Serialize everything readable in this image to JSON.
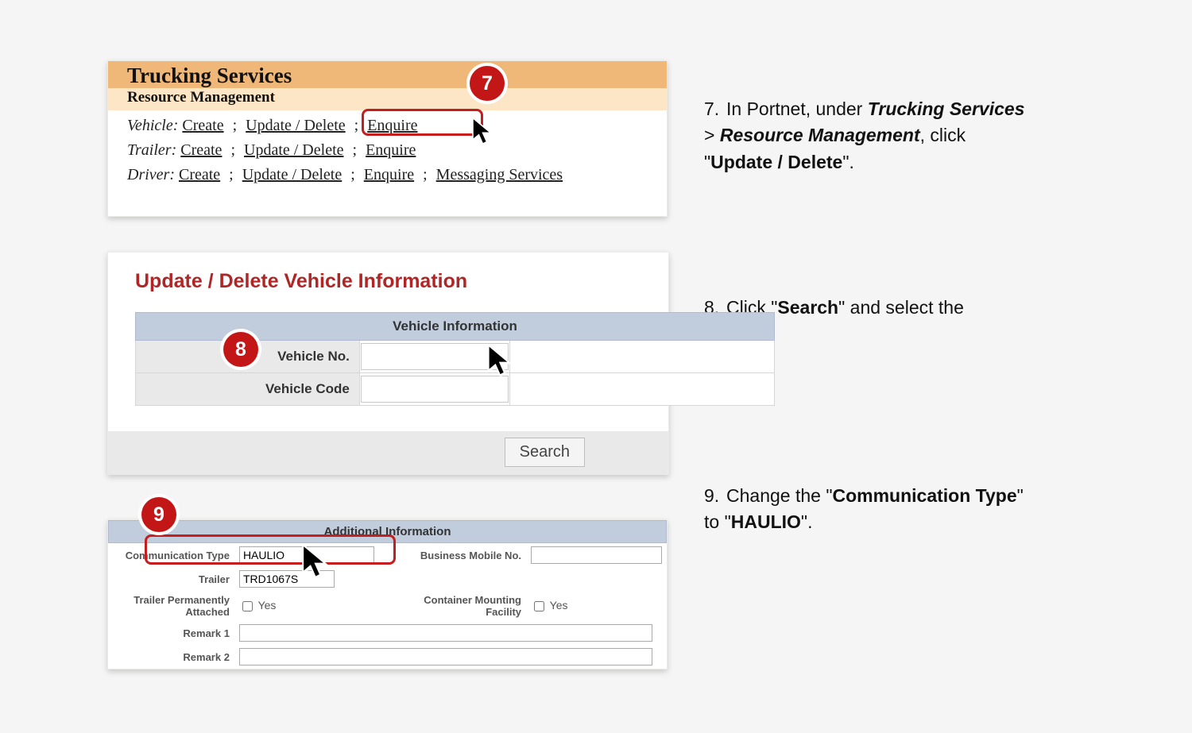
{
  "colors": {
    "badge_bg": "#c31717",
    "badge_ring": "#ffffff",
    "hilite_border": "#c41e1e",
    "orange_bar": "#f0b878",
    "peach_bar": "#fde6c6",
    "blue_band": "#c1ccdd",
    "grey_cell": "#e9e9e9",
    "red_title": "#b02626"
  },
  "badges": {
    "p1": "7",
    "p2": "8",
    "p3": "9"
  },
  "panel1": {
    "title": "Trucking Services",
    "subtitle": "Resource Management",
    "rows": [
      {
        "label": "Vehicle",
        "links": [
          "Create",
          "Update / Delete",
          "Enquire"
        ]
      },
      {
        "label": "Trailer",
        "links": [
          "Create",
          "Update / Delete",
          "Enquire"
        ]
      },
      {
        "label": "Driver",
        "links": [
          "Create",
          "Update / Delete",
          "Enquire",
          "Messaging Services"
        ]
      }
    ]
  },
  "panel2": {
    "title": "Update / Delete Vehicle Information",
    "band": "Vehicle Information",
    "field1_label": "Vehicle No.",
    "field2_label": "Vehicle Code",
    "search_label": "Search"
  },
  "panel3": {
    "band": "Additional Information",
    "comm_type_label": "Communication Type",
    "comm_type_value": "HAULIO",
    "biz_mobile_label": "Business Mobile No.",
    "biz_mobile_value": "",
    "trailer_label": "Trailer",
    "trailer_value": "TRD1067S",
    "tpa_label": "Trailer Permanently Attached",
    "cmf_label": "Container Mounting Facility",
    "yes": "Yes",
    "remark1_label": "Remark 1",
    "remark2_label": "Remark 2"
  },
  "steps": {
    "s7_pre": "In Portnet, under ",
    "s7_b1": "Trucking Services",
    "s7_gt": " > ",
    "s7_b2": "Resource Management",
    "s7_mid": ", click \"",
    "s7_b3": "Update / Delete",
    "s7_end": "\".",
    "s8_pre": "Click \"",
    "s8_b1": "Search",
    "s8_end": "\" and select the vehicle.",
    "s9_pre": "Change the \"",
    "s9_b1": "Communication Type",
    "s9_mid": "\" to \"",
    "s9_b2": "HAULIO",
    "s9_end": "\"."
  }
}
